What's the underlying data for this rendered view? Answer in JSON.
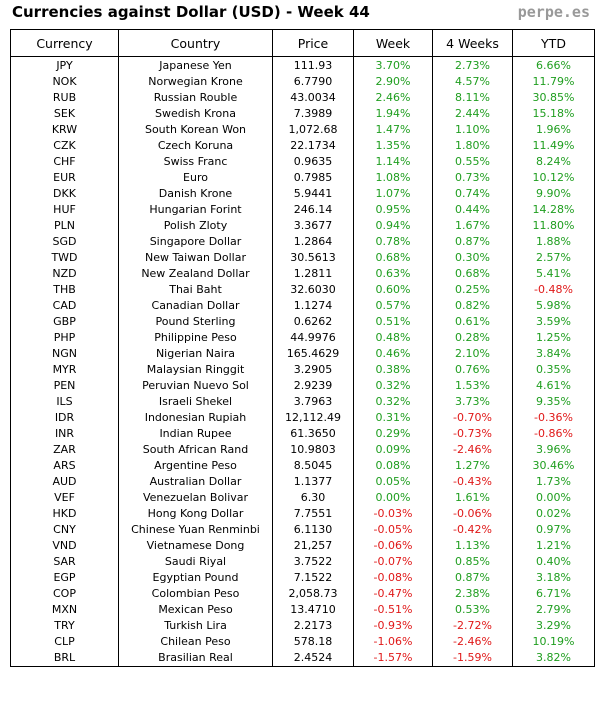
{
  "header": {
    "title": "Currencies against Dollar (USD) - Week 44",
    "site": "perpe.es"
  },
  "table": {
    "columns": [
      "Currency",
      "Country",
      "Price",
      "Week",
      "4 Weeks",
      "YTD"
    ],
    "rows": [
      [
        "JPY",
        "Japanese Yen",
        "111.93",
        "3.70%",
        "2.73%",
        "6.66%"
      ],
      [
        "NOK",
        "Norwegian Krone",
        "6.7790",
        "2.90%",
        "4.57%",
        "11.79%"
      ],
      [
        "RUB",
        "Russian Rouble",
        "43.0034",
        "2.46%",
        "8.11%",
        "30.85%"
      ],
      [
        "SEK",
        "Swedish Krona",
        "7.3989",
        "1.94%",
        "2.44%",
        "15.18%"
      ],
      [
        "KRW",
        "South Korean Won",
        "1,072.68",
        "1.47%",
        "1.10%",
        "1.96%"
      ],
      [
        "CZK",
        "Czech Koruna",
        "22.1734",
        "1.35%",
        "1.80%",
        "11.49%"
      ],
      [
        "CHF",
        "Swiss Franc",
        "0.9635",
        "1.14%",
        "0.55%",
        "8.24%"
      ],
      [
        "EUR",
        "Euro",
        "0.7985",
        "1.08%",
        "0.73%",
        "10.12%"
      ],
      [
        "DKK",
        "Danish Krone",
        "5.9441",
        "1.07%",
        "0.74%",
        "9.90%"
      ],
      [
        "HUF",
        "Hungarian Forint",
        "246.14",
        "0.95%",
        "0.44%",
        "14.28%"
      ],
      [
        "PLN",
        "Polish Zloty",
        "3.3677",
        "0.94%",
        "1.67%",
        "11.80%"
      ],
      [
        "SGD",
        "Singapore Dollar",
        "1.2864",
        "0.78%",
        "0.87%",
        "1.88%"
      ],
      [
        "TWD",
        "New Taiwan Dollar",
        "30.5613",
        "0.68%",
        "0.30%",
        "2.57%"
      ],
      [
        "NZD",
        "New Zealand Dollar",
        "1.2811",
        "0.63%",
        "0.68%",
        "5.41%"
      ],
      [
        "THB",
        "Thai Baht",
        "32.6030",
        "0.60%",
        "0.25%",
        "-0.48%"
      ],
      [
        "CAD",
        "Canadian Dollar",
        "1.1274",
        "0.57%",
        "0.82%",
        "5.98%"
      ],
      [
        "GBP",
        "Pound Sterling",
        "0.6262",
        "0.51%",
        "0.61%",
        "3.59%"
      ],
      [
        "PHP",
        "Philippine Peso",
        "44.9976",
        "0.48%",
        "0.28%",
        "1.25%"
      ],
      [
        "NGN",
        "Nigerian Naira",
        "165.4629",
        "0.46%",
        "2.10%",
        "3.84%"
      ],
      [
        "MYR",
        "Malaysian Ringgit",
        "3.2905",
        "0.38%",
        "0.76%",
        "0.35%"
      ],
      [
        "PEN",
        "Peruvian Nuevo Sol",
        "2.9239",
        "0.32%",
        "1.53%",
        "4.61%"
      ],
      [
        "ILS",
        "Israeli Shekel",
        "3.7963",
        "0.32%",
        "3.73%",
        "9.35%"
      ],
      [
        "IDR",
        "Indonesian Rupiah",
        "12,112.49",
        "0.31%",
        "-0.70%",
        "-0.36%"
      ],
      [
        "INR",
        "Indian Rupee",
        "61.3650",
        "0.29%",
        "-0.73%",
        "-0.86%"
      ],
      [
        "ZAR",
        "South African Rand",
        "10.9803",
        "0.09%",
        "-2.46%",
        "3.96%"
      ],
      [
        "ARS",
        "Argentine Peso",
        "8.5045",
        "0.08%",
        "1.27%",
        "30.46%"
      ],
      [
        "AUD",
        "Australian Dollar",
        "1.1377",
        "0.05%",
        "-0.43%",
        "1.73%"
      ],
      [
        "VEF",
        "Venezuelan Bolivar",
        "6.30",
        "0.00%",
        "1.61%",
        "0.00%"
      ],
      [
        "HKD",
        "Hong Kong Dollar",
        "7.7551",
        "-0.03%",
        "-0.06%",
        "0.02%"
      ],
      [
        "CNY",
        "Chinese Yuan Renminbi",
        "6.1130",
        "-0.05%",
        "-0.42%",
        "0.97%"
      ],
      [
        "VND",
        "Vietnamese Dong",
        "21,257",
        "-0.06%",
        "1.13%",
        "1.21%"
      ],
      [
        "SAR",
        "Saudi Riyal",
        "3.7522",
        "-0.07%",
        "0.85%",
        "0.40%"
      ],
      [
        "EGP",
        "Egyptian Pound",
        "7.1522",
        "-0.08%",
        "0.87%",
        "3.18%"
      ],
      [
        "COP",
        "Colombian Peso",
        "2,058.73",
        "-0.47%",
        "2.38%",
        "6.71%"
      ],
      [
        "MXN",
        "Mexican Peso",
        "13.4710",
        "-0.51%",
        "0.53%",
        "2.79%"
      ],
      [
        "TRY",
        "Turkish Lira",
        "2.2173",
        "-0.93%",
        "-2.72%",
        "3.29%"
      ],
      [
        "CLP",
        "Chilean Peso",
        "578.18",
        "-1.06%",
        "-2.46%",
        "10.19%"
      ],
      [
        "BRL",
        "Brasilian Real",
        "2.4524",
        "-1.57%",
        "-1.59%",
        "3.82%"
      ]
    ]
  }
}
